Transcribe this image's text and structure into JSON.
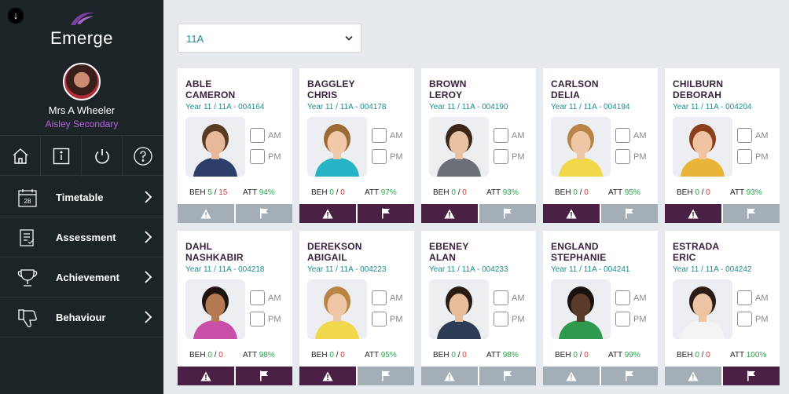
{
  "app": {
    "name": "Emerge",
    "brand_color": "#7b3fa0"
  },
  "user": {
    "name": "Mrs A Wheeler",
    "school": "Aisley Secondary"
  },
  "icon_bar": [
    {
      "icon": "home-icon"
    },
    {
      "icon": "info-icon"
    },
    {
      "icon": "power-icon"
    },
    {
      "icon": "help-icon"
    }
  ],
  "nav": [
    {
      "label": "Timetable",
      "icon": "calendar-icon",
      "calendar_day": "28"
    },
    {
      "label": "Assessment",
      "icon": "clipboard-icon"
    },
    {
      "label": "Achievement",
      "icon": "trophy-icon"
    },
    {
      "label": "Behaviour",
      "icon": "thumbs-down-icon"
    }
  ],
  "class_select": {
    "value": "11A"
  },
  "register_labels": {
    "am": "AM",
    "pm": "PM",
    "beh": "BEH",
    "att": "ATT",
    "sep": "/"
  },
  "students": [
    {
      "last": "ABLE",
      "first": "CAMERON",
      "form": "Year 11 / 11A - 004164",
      "beh_pos": "5",
      "beh_neg": "15",
      "att": "94%",
      "warn_active": false,
      "flag_active": false,
      "skin": "#e7b89a",
      "hair": "#5a3b22",
      "shirt": "#2c3e6a"
    },
    {
      "last": "BAGGLEY",
      "first": "CHRIS",
      "form": "Year 11 / 11A - 004178",
      "beh_pos": "0",
      "beh_neg": "0",
      "att": "97%",
      "warn_active": true,
      "flag_active": true,
      "skin": "#f2c9a8",
      "hair": "#9c6a35",
      "shirt": "#27b2c6"
    },
    {
      "last": "BROWN",
      "first": "LEROY",
      "form": "Year 11 / 11A - 004190",
      "beh_pos": "0",
      "beh_neg": "0",
      "att": "93%",
      "warn_active": true,
      "flag_active": false,
      "skin": "#e9c1a3",
      "hair": "#3b2618",
      "shirt": "#6b6f78"
    },
    {
      "last": "CARLSON",
      "first": "DELIA",
      "form": "Year 11 / 11A - 004194",
      "beh_pos": "0",
      "beh_neg": "0",
      "att": "95%",
      "warn_active": true,
      "flag_active": false,
      "skin": "#f0c7a6",
      "hair": "#b98547",
      "shirt": "#f0d84a"
    },
    {
      "last": "CHILBURN",
      "first": "DEBORAH",
      "form": "Year 11 / 11A - 004204",
      "beh_pos": "0",
      "beh_neg": "0",
      "att": "93%",
      "warn_active": true,
      "flag_active": false,
      "skin": "#f0c4a2",
      "hair": "#8b3f1c",
      "shirt": "#e9b43a"
    },
    {
      "last": "DAHL",
      "first": "NASHKABIR",
      "form": "Year 11 / 11A - 004218",
      "beh_pos": "0",
      "beh_neg": "0",
      "att": "98%",
      "warn_active": true,
      "flag_active": true,
      "skin": "#b57a52",
      "hair": "#1e1410",
      "shirt": "#c94fa8"
    },
    {
      "last": "DEREKSON",
      "first": "ABIGAIL",
      "form": "Year 11 / 11A - 004223",
      "beh_pos": "0",
      "beh_neg": "0",
      "att": "95%",
      "warn_active": true,
      "flag_active": false,
      "skin": "#f0c7a6",
      "hair": "#b98547",
      "shirt": "#f0d84a"
    },
    {
      "last": "EBENEY",
      "first": "ALAN",
      "form": "Year 11 / 11A - 004233",
      "beh_pos": "0",
      "beh_neg": "0",
      "att": "98%",
      "warn_active": false,
      "flag_active": false,
      "skin": "#e8bd9c",
      "hair": "#2a1b12",
      "shirt": "#2d3c55"
    },
    {
      "last": "ENGLAND",
      "first": "STEPHANIE",
      "form": "Year 11 / 11A - 004241",
      "beh_pos": "0",
      "beh_neg": "0",
      "att": "99%",
      "warn_active": false,
      "flag_active": false,
      "skin": "#5a3a28",
      "hair": "#1a1210",
      "shirt": "#2f9a4e"
    },
    {
      "last": "ESTRADA",
      "first": "ERIC",
      "form": "Year 11 / 11A - 004242",
      "beh_pos": "0",
      "beh_neg": "0",
      "att": "100%",
      "warn_active": false,
      "flag_active": true,
      "skin": "#ecc3a3",
      "hair": "#2b1d16",
      "shirt": "#f4f4f4"
    }
  ],
  "colors": {
    "sidebar": "#1c2428",
    "active_button": "#4a2045",
    "inactive_button": "#a4aeb6",
    "teal": "#1f8c8f",
    "positive": "#28a54b",
    "negative": "#d23c3c"
  }
}
